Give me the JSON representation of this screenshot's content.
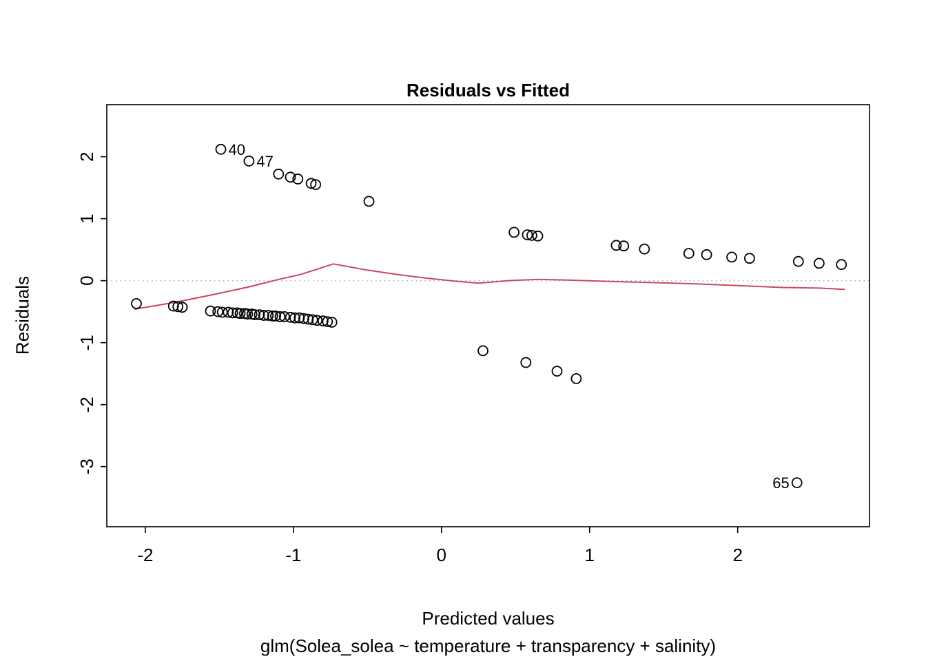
{
  "chart_data": {
    "type": "scatter",
    "title": "Residuals vs Fitted",
    "xlabel": "Predicted values",
    "sublabel": "glm(Solea_solea ~ temperature + transparency + salinity)",
    "ylabel": "Residuals",
    "xlim": [
      -2.26,
      2.89
    ],
    "ylim": [
      -3.97,
      2.84
    ],
    "x_ticks": [
      -2,
      -1,
      0,
      1,
      2
    ],
    "y_ticks": [
      2,
      1,
      0,
      -1,
      -2,
      -3
    ],
    "grid": false,
    "point_color": "#000000",
    "points": [
      [
        -1.1,
        1.72
      ],
      [
        -1.02,
        1.67
      ],
      [
        -0.97,
        1.64
      ],
      [
        -0.88,
        1.57
      ],
      [
        -0.85,
        1.55
      ],
      [
        -0.49,
        1.28
      ],
      [
        0.49,
        0.78
      ],
      [
        0.58,
        0.74
      ],
      [
        0.61,
        0.73
      ],
      [
        0.65,
        0.72
      ],
      [
        1.18,
        0.57
      ],
      [
        1.23,
        0.56
      ],
      [
        1.37,
        0.51
      ],
      [
        1.67,
        0.44
      ],
      [
        1.79,
        0.42
      ],
      [
        1.96,
        0.38
      ],
      [
        2.08,
        0.36
      ],
      [
        2.41,
        0.31
      ],
      [
        2.55,
        0.28
      ],
      [
        2.7,
        0.26
      ],
      [
        -2.06,
        -0.37
      ],
      [
        -1.81,
        -0.41
      ],
      [
        -1.78,
        -0.42
      ],
      [
        -1.75,
        -0.43
      ],
      [
        -1.56,
        -0.49
      ],
      [
        -1.51,
        -0.5
      ],
      [
        -1.48,
        -0.51
      ],
      [
        -1.44,
        -0.51
      ],
      [
        -1.41,
        -0.52
      ],
      [
        -1.38,
        -0.52
      ],
      [
        -1.36,
        -0.53
      ],
      [
        -1.33,
        -0.53
      ],
      [
        -1.31,
        -0.54
      ],
      [
        -1.28,
        -0.54
      ],
      [
        -1.26,
        -0.55
      ],
      [
        -1.23,
        -0.55
      ],
      [
        -1.2,
        -0.56
      ],
      [
        -1.17,
        -0.56
      ],
      [
        -1.14,
        -0.57
      ],
      [
        -1.12,
        -0.57
      ],
      [
        -1.09,
        -0.58
      ],
      [
        -1.06,
        -0.58
      ],
      [
        -1.02,
        -0.59
      ],
      [
        -0.99,
        -0.6
      ],
      [
        -0.96,
        -0.6
      ],
      [
        -0.93,
        -0.61
      ],
      [
        -0.9,
        -0.62
      ],
      [
        -0.87,
        -0.63
      ],
      [
        -0.84,
        -0.64
      ],
      [
        -0.8,
        -0.65
      ],
      [
        -0.77,
        -0.66
      ],
      [
        -0.74,
        -0.67
      ],
      [
        0.28,
        -1.13
      ],
      [
        0.57,
        -1.32
      ],
      [
        0.78,
        -1.46
      ],
      [
        0.91,
        -1.58
      ]
    ],
    "labeled_points": [
      {
        "label": "40",
        "x": -1.49,
        "y": 2.12,
        "side": "right"
      },
      {
        "label": "47",
        "x": -1.3,
        "y": 1.93,
        "side": "right"
      },
      {
        "label": "65",
        "x": 2.4,
        "y": -3.26,
        "side": "left"
      }
    ],
    "smoother": {
      "color": "#c9485b",
      "points": [
        [
          -2.07,
          -0.46
        ],
        [
          -1.8,
          -0.35
        ],
        [
          -1.53,
          -0.22
        ],
        [
          -1.3,
          -0.1
        ],
        [
          -1.1,
          0.02
        ],
        [
          -0.95,
          0.1
        ],
        [
          -0.73,
          0.27
        ],
        [
          -0.5,
          0.17
        ],
        [
          -0.3,
          0.1
        ],
        [
          -0.1,
          0.04
        ],
        [
          0.1,
          -0.01
        ],
        [
          0.25,
          -0.04
        ],
        [
          0.45,
          0.0
        ],
        [
          0.65,
          0.02
        ],
        [
          0.85,
          0.01
        ],
        [
          1.1,
          -0.01
        ],
        [
          1.4,
          -0.03
        ],
        [
          1.7,
          -0.05
        ],
        [
          2.0,
          -0.08
        ],
        [
          2.3,
          -0.11
        ],
        [
          2.55,
          -0.12
        ],
        [
          2.72,
          -0.14
        ]
      ]
    },
    "zero_line": {
      "y": 0,
      "style": "dotted",
      "color": "#aaaaaa"
    }
  }
}
